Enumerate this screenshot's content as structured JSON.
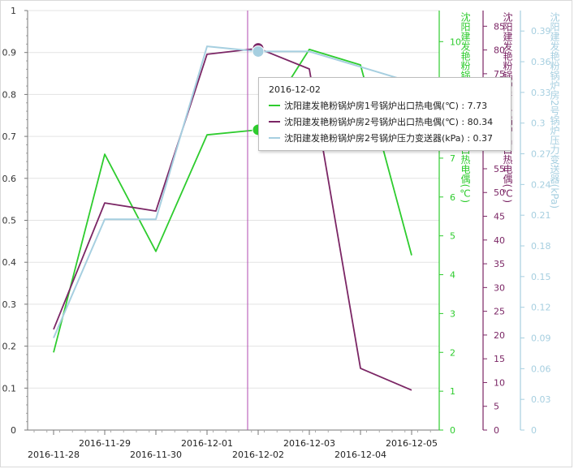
{
  "chart_data": {
    "type": "line",
    "x": [
      "2016-11-28",
      "2016-11-29",
      "2016-11-30",
      "2016-12-01",
      "2016-12-02",
      "2016-12-03",
      "2016-12-04",
      "2016-12-05"
    ],
    "x_tick_labels": [
      "2016-11-28",
      "2016-11-29",
      "2016-11-30",
      "2016-12-01",
      "2016-12-02",
      "2016-12-03",
      "2016-12-04",
      "2016-12-05"
    ],
    "left_axis": {
      "ylim": [
        0,
        1
      ],
      "ticks": [
        "0",
        "0.1",
        "0.2",
        "0.3",
        "0.4",
        "0.5",
        "0.6",
        "0.7",
        "0.8",
        "0.9",
        "1"
      ]
    },
    "axes": [
      {
        "id": "a1",
        "label": "沈阳建发艳粉锅炉房1号锅炉出口热电偶(℃)",
        "ylim": [
          0,
          10.8
        ],
        "ticks": [
          "0",
          "1",
          "2",
          "3",
          "4",
          "5",
          "6",
          "7",
          "8",
          "9",
          "10"
        ],
        "color": "#2ecc2e"
      },
      {
        "id": "a2",
        "label": "沈阳建发艳粉锅炉房2号锅炉出口热电偶(℃)",
        "ylim": [
          0,
          88.3
        ],
        "ticks": [
          "0",
          "5",
          "10",
          "15",
          "20",
          "25",
          "30",
          "35",
          "40",
          "45",
          "50",
          "55",
          "60",
          "65",
          "70",
          "75",
          "80",
          "85"
        ],
        "color": "#7b2665"
      },
      {
        "id": "a3",
        "label": "沈阳建发艳粉锅炉房2号锅炉压力变送器(kPa)",
        "ylim": [
          0,
          0.41
        ],
        "ticks": [
          "0",
          "0.03",
          "0.06",
          "0.09",
          "0.12",
          "0.15",
          "0.18",
          "0.21",
          "0.24",
          "0.27",
          "0.3",
          "0.33",
          "0.36",
          "0.39"
        ],
        "color": "#a6cfe0"
      }
    ],
    "series": [
      {
        "name": "沈阳建发艳粉锅炉房1号锅炉出口热电偶(℃)",
        "axis": "a1",
        "color": "#2ecc2e",
        "x": [
          0,
          1,
          2,
          3,
          4,
          5,
          6,
          7
        ],
        "values": [
          2.0,
          7.1,
          4.6,
          7.6,
          7.73,
          9.8,
          9.4,
          4.5
        ]
      },
      {
        "name": "沈阳建发艳粉锅炉房2号锅炉出口热电偶(℃)",
        "axis": "a2",
        "color": "#7b2665",
        "x": [
          0,
          1,
          2,
          3,
          4,
          5,
          6,
          7
        ],
        "values": [
          21.2,
          47.8,
          46.1,
          79.1,
          80.34,
          76.0,
          13.0,
          8.4
        ]
      },
      {
        "name": "沈阳建发艳粉锅炉房2号锅炉压力变送器(kPa)",
        "axis": "a3",
        "color": "#a6cfe0",
        "x": [
          0,
          1,
          2,
          2.0,
          3,
          4,
          5,
          7
        ],
        "values": [
          0.09,
          0.206,
          0.206,
          0.206,
          0.375,
          0.37,
          0.37,
          0.34
        ]
      }
    ],
    "crosshair_x": "2016-12-02",
    "tooltip": {
      "date": "2016-12-02",
      "rows": [
        {
          "label": "沈阳建发艳粉锅炉房1号锅炉出口热电偶(℃)",
          "value": "7.73",
          "color": "#2ecc2e"
        },
        {
          "label": "沈阳建发艳粉锅炉房2号锅炉出口热电偶(℃)",
          "value": "80.34",
          "color": "#7b2665"
        },
        {
          "label": "沈阳建发艳粉锅炉房2号锅炉压力变送器(kPa)",
          "value": "0.37",
          "color": "#a6cfe0"
        }
      ]
    },
    "grid": true
  }
}
